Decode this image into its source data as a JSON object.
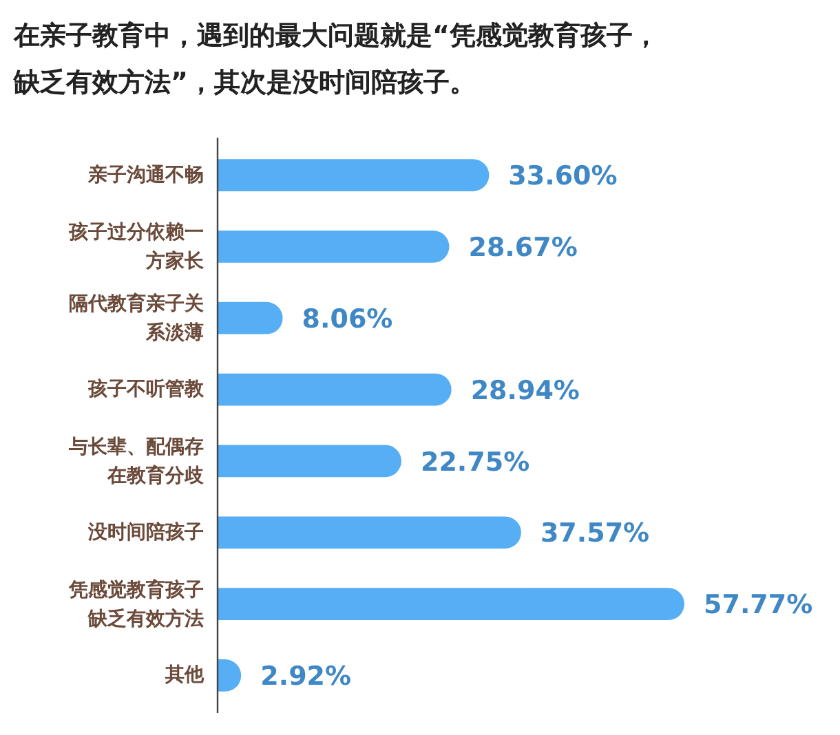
{
  "chart_data": {
    "type": "bar",
    "orientation": "horizontal",
    "title": "在亲子教育中，遇到的最大问题就是“凭感觉教育孩子，缺乏有效方法”，其次是没时间陪孩子。",
    "categories": [
      "亲子沟通不畅",
      "孩子过分依赖一方家长",
      "隔代教育亲子关系淡薄",
      "孩子不听管教",
      "与长辈、配偶存在教育分歧",
      "没时间陪孩子",
      "凭感觉教育孩子缺乏有效方法",
      "其他"
    ],
    "values": [
      33.6,
      28.67,
      8.06,
      28.94,
      22.75,
      37.57,
      57.77,
      2.92
    ],
    "value_labels": [
      "33.60%",
      "28.67%",
      "8.06%",
      "28.94%",
      "22.75%",
      "37.57%",
      "57.77%",
      "2.92%"
    ],
    "color": "#56aef5",
    "tick_labels": "y"
  }
}
